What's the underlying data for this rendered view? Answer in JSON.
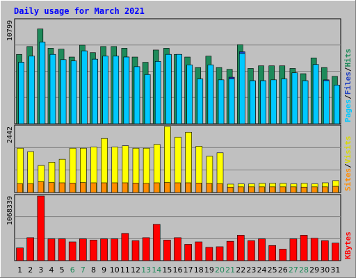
{
  "title": "Daily usage for March 2021",
  "chart_data": [
    {
      "type": "bar",
      "panel": "hits-files-pages",
      "categories": [
        "1",
        "2",
        "3",
        "4",
        "5",
        "6",
        "7",
        "8",
        "9",
        "10",
        "11",
        "12",
        "13",
        "14",
        "15",
        "16",
        "17",
        "18",
        "19",
        "20",
        "21",
        "22",
        "23",
        "24",
        "25",
        "26",
        "27",
        "28",
        "29",
        "30",
        "31"
      ],
      "weekend_days": [
        "6",
        "7",
        "13",
        "14",
        "20",
        "21",
        "27",
        "28"
      ],
      "ymax_label": "10799",
      "ylim": [
        0,
        11800
      ],
      "series": [
        {
          "name": "Hits",
          "color": "#1e8a5a",
          "values": [
            7900,
            8800,
            10799,
            8600,
            8500,
            7600,
            8950,
            8100,
            8800,
            8800,
            8600,
            7600,
            7000,
            8400,
            8600,
            7900,
            7600,
            6400,
            7700,
            6400,
            6200,
            9000,
            6300,
            6600,
            6600,
            6600,
            6300,
            5700,
            7500,
            6400,
            5400
          ]
        },
        {
          "name": "Files",
          "color": "#2040c0",
          "values": [
            7000,
            7700,
            9300,
            7900,
            7300,
            7150,
            8300,
            7350,
            7700,
            7700,
            7600,
            6500,
            5600,
            7100,
            7900,
            7900,
            6700,
            5100,
            6700,
            5000,
            5300,
            8200,
            4900,
            4900,
            5000,
            5100,
            5800,
            4900,
            6750,
            5000,
            4400
          ]
        },
        {
          "name": "Pages",
          "color": "#00c8ff",
          "values": [
            7000,
            7700,
            9300,
            7900,
            7300,
            7150,
            8300,
            7350,
            7700,
            7700,
            7600,
            6500,
            5600,
            7100,
            7900,
            7900,
            6700,
            5100,
            6700,
            5000,
            5100,
            8000,
            4900,
            4900,
            5000,
            5100,
            5800,
            4900,
            6750,
            4900,
            4400
          ]
        }
      ]
    },
    {
      "type": "bar",
      "panel": "visits-sites",
      "categories": [
        "1",
        "2",
        "3",
        "4",
        "5",
        "6",
        "7",
        "8",
        "9",
        "10",
        "11",
        "12",
        "13",
        "14",
        "15",
        "16",
        "17",
        "18",
        "19",
        "20",
        "21",
        "22",
        "23",
        "24",
        "25",
        "26",
        "27",
        "28",
        "29",
        "30",
        "31"
      ],
      "ymax_label": "2442",
      "ylim": [
        0,
        2442
      ],
      "series": [
        {
          "name": "Visits",
          "color": "#ffff00",
          "values": [
            1640,
            1510,
            1000,
            1120,
            1230,
            1640,
            1640,
            1680,
            2000,
            1680,
            1730,
            1640,
            1640,
            1780,
            2442,
            2050,
            2230,
            1710,
            1340,
            1470,
            310,
            320,
            320,
            340,
            340,
            340,
            320,
            340,
            320,
            360,
            440
          ]
        },
        {
          "name": "Sites",
          "color": "#ff8c00",
          "values": [
            330,
            330,
            400,
            370,
            360,
            350,
            370,
            360,
            360,
            360,
            360,
            350,
            340,
            360,
            370,
            360,
            360,
            350,
            340,
            330,
            200,
            210,
            210,
            210,
            210,
            210,
            210,
            200,
            210,
            210,
            230
          ]
        }
      ]
    },
    {
      "type": "bar",
      "panel": "kbytes",
      "categories": [
        "1",
        "2",
        "3",
        "4",
        "5",
        "6",
        "7",
        "8",
        "9",
        "10",
        "11",
        "12",
        "13",
        "14",
        "15",
        "16",
        "17",
        "18",
        "19",
        "20",
        "21",
        "22",
        "23",
        "24",
        "25",
        "26",
        "27",
        "28",
        "29",
        "30",
        "31"
      ],
      "ymax_label": "1068339",
      "ylim": [
        0,
        1068339
      ],
      "series": [
        {
          "name": "KBytes",
          "color": "#ff0000",
          "values": [
            210000,
            380000,
            1068339,
            360000,
            360000,
            310000,
            360000,
            340000,
            360000,
            360000,
            450000,
            330000,
            380000,
            600000,
            340000,
            380000,
            270000,
            310000,
            220000,
            230000,
            320000,
            420000,
            330000,
            360000,
            250000,
            190000,
            360000,
            420000,
            370000,
            330000,
            290000
          ]
        }
      ]
    }
  ]
}
